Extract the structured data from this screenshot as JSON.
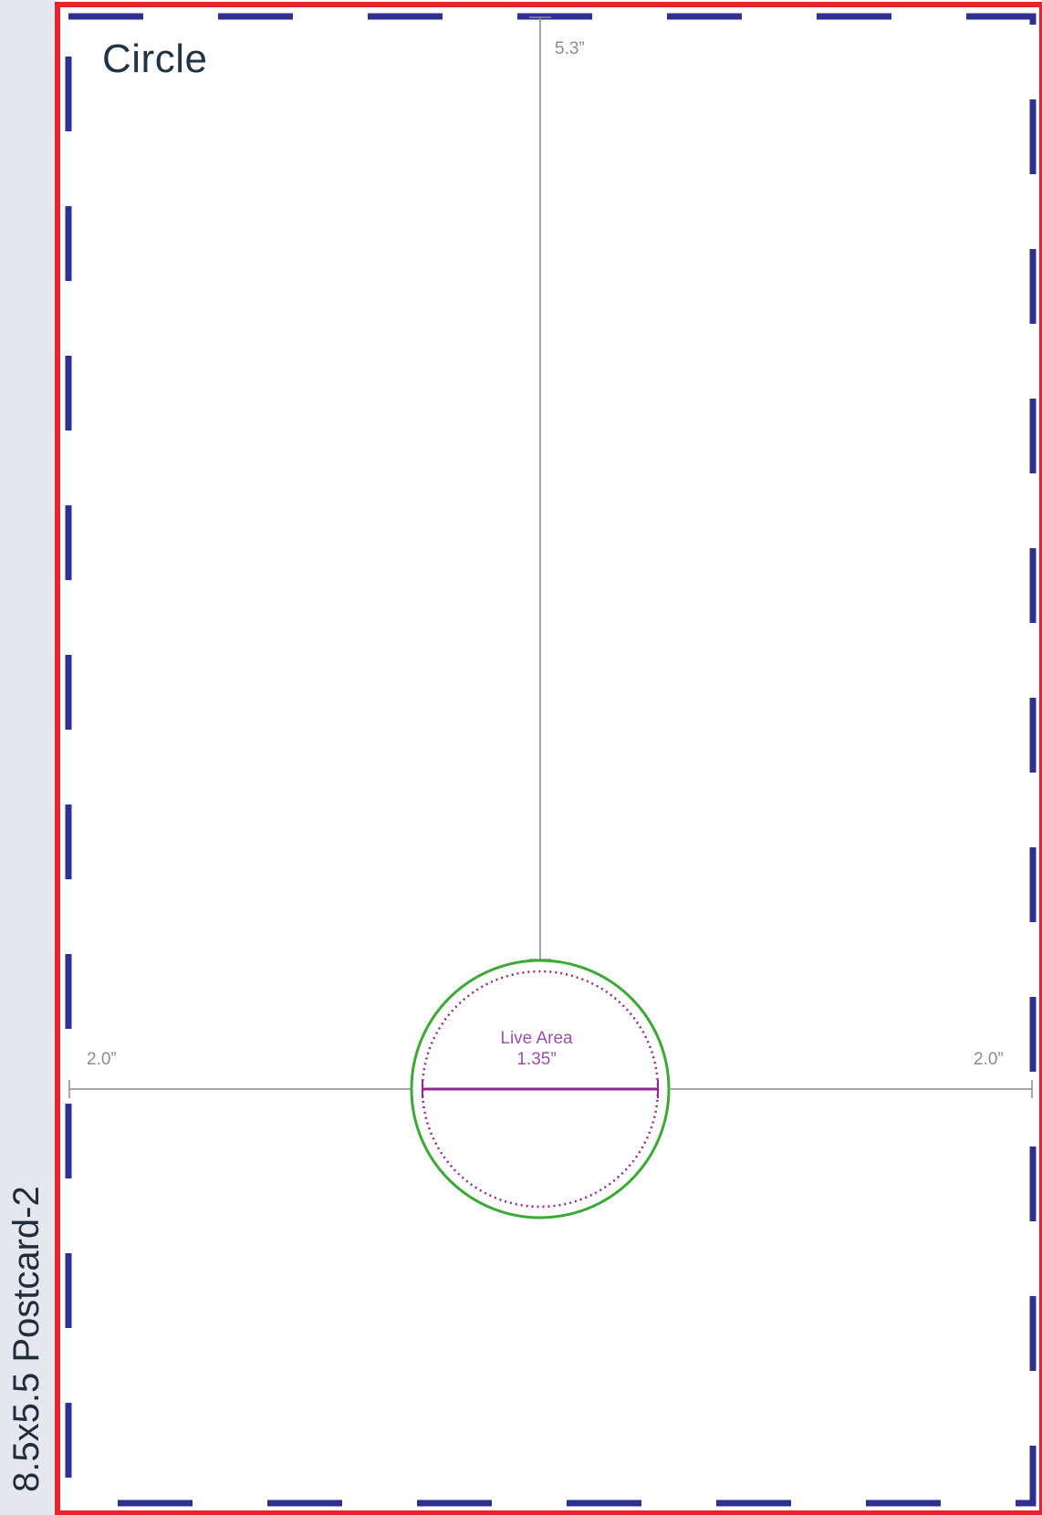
{
  "document": {
    "side_label": "8.5x5.5 Postcard-2",
    "title": "Circle"
  },
  "dimensions": {
    "vertical": "5.3”",
    "left_horizontal": "2.0”",
    "right_horizontal": "2.0”"
  },
  "live_area": {
    "label": "Live Area",
    "diameter": "1.35”"
  },
  "colors": {
    "trim_border": "#e8232f",
    "safe_dashes": "#2e3192",
    "bleed_circle": "#3aaa35",
    "live_area": "#92278f",
    "dimension_lines": "#8c8c8c",
    "side_strip": "#e4e7ee"
  }
}
